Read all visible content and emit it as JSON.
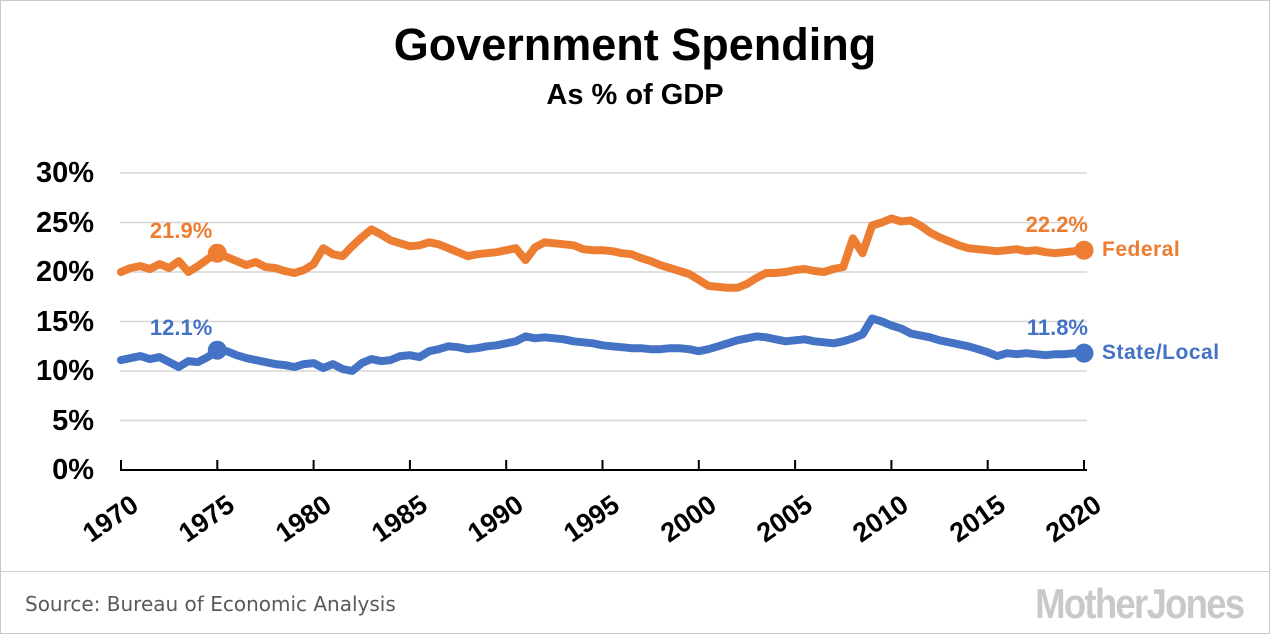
{
  "header": {
    "title": "Government Spending",
    "subtitle": "As % of GDP"
  },
  "footer": {
    "source": "Source:  Bureau of Economic Analysis",
    "logo": "MotherJones"
  },
  "colors": {
    "federal": "#ED7D31",
    "state_local": "#4472C4",
    "grid": "#d6d6d6",
    "axis": "#000000",
    "source_text": "#595959",
    "logo": "#c9c9c9"
  },
  "chart_data": {
    "type": "line",
    "title": "Government Spending",
    "subtitle": "As % of GDP",
    "xlabel": "",
    "ylabel": "",
    "grid": "horizontal",
    "legend_position": "right-inline",
    "x_axis": {
      "range": [
        1970,
        2020
      ],
      "ticks": [
        1970,
        1975,
        1980,
        1985,
        1990,
        1995,
        2000,
        2005,
        2010,
        2015,
        2020
      ]
    },
    "y_axis": {
      "range": [
        0,
        30
      ],
      "tick_values": [
        0,
        5,
        10,
        15,
        20,
        25,
        30
      ],
      "tick_labels": [
        "0%",
        "5%",
        "10%",
        "15%",
        "20%",
        "25%",
        "30%"
      ]
    },
    "x_start": 1970,
    "x_step": 0.5,
    "series": [
      {
        "name": "Federal",
        "color": "#ED7D31",
        "values": [
          20.0,
          20.4,
          20.6,
          20.3,
          20.8,
          20.4,
          21.1,
          20.0,
          20.6,
          21.3,
          21.9,
          21.5,
          21.1,
          20.7,
          21.0,
          20.5,
          20.4,
          20.1,
          19.9,
          20.2,
          20.8,
          22.4,
          21.8,
          21.6,
          22.6,
          23.5,
          24.3,
          23.8,
          23.2,
          22.9,
          22.6,
          22.7,
          23.0,
          22.8,
          22.4,
          22.0,
          21.6,
          21.8,
          21.9,
          22.0,
          22.2,
          22.4,
          21.2,
          22.5,
          23.0,
          22.9,
          22.8,
          22.7,
          22.3,
          22.2,
          22.2,
          22.1,
          21.9,
          21.8,
          21.4,
          21.1,
          20.7,
          20.4,
          20.1,
          19.8,
          19.2,
          18.6,
          18.5,
          18.4,
          18.4,
          18.8,
          19.4,
          19.9,
          19.9,
          20.0,
          20.2,
          20.3,
          20.1,
          20.0,
          20.3,
          20.5,
          23.4,
          21.9,
          24.7,
          25.0,
          25.4,
          25.1,
          25.2,
          24.7,
          24.0,
          23.5,
          23.1,
          22.7,
          22.4,
          22.3,
          22.2,
          22.1,
          22.2,
          22.3,
          22.1,
          22.2,
          22.0,
          21.9,
          22.0,
          22.1,
          22.2
        ]
      },
      {
        "name": "State/Local",
        "color": "#4472C4",
        "values": [
          11.1,
          11.3,
          11.5,
          11.2,
          11.4,
          10.9,
          10.4,
          11.0,
          10.9,
          11.4,
          12.1,
          12.0,
          11.6,
          11.3,
          11.1,
          10.9,
          10.7,
          10.6,
          10.4,
          10.7,
          10.8,
          10.3,
          10.7,
          10.2,
          10.0,
          10.8,
          11.2,
          11.0,
          11.1,
          11.5,
          11.6,
          11.4,
          12.0,
          12.2,
          12.5,
          12.4,
          12.2,
          12.3,
          12.5,
          12.6,
          12.8,
          13.0,
          13.5,
          13.3,
          13.4,
          13.3,
          13.2,
          13.0,
          12.9,
          12.8,
          12.6,
          12.5,
          12.4,
          12.3,
          12.3,
          12.2,
          12.2,
          12.3,
          12.3,
          12.2,
          12.0,
          12.2,
          12.5,
          12.8,
          13.1,
          13.3,
          13.5,
          13.4,
          13.2,
          13.0,
          13.1,
          13.2,
          13.0,
          12.9,
          12.8,
          13.0,
          13.3,
          13.7,
          15.3,
          15.0,
          14.6,
          14.3,
          13.8,
          13.6,
          13.4,
          13.1,
          12.9,
          12.7,
          12.5,
          12.2,
          11.9,
          11.5,
          11.8,
          11.7,
          11.8,
          11.7,
          11.6,
          11.7,
          11.7,
          11.8,
          11.8
        ]
      }
    ],
    "callouts": [
      {
        "series": "Federal",
        "year": 1975,
        "value": 21.9,
        "label": "21.9%"
      },
      {
        "series": "Federal",
        "year": 2020,
        "value": 22.2,
        "label": "22.2%"
      },
      {
        "series": "State/Local",
        "year": 1975,
        "value": 12.1,
        "label": "12.1%"
      },
      {
        "series": "State/Local",
        "year": 2020,
        "value": 11.8,
        "label": "11.8%"
      }
    ]
  }
}
